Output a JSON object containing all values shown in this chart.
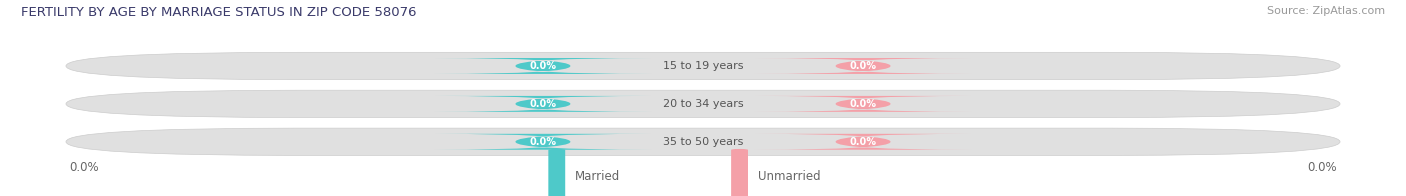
{
  "title": "FERTILITY BY AGE BY MARRIAGE STATUS IN ZIP CODE 58076",
  "source": "Source: ZipAtlas.com",
  "categories": [
    "15 to 19 years",
    "20 to 34 years",
    "35 to 50 years"
  ],
  "married_values": [
    0.0,
    0.0,
    0.0
  ],
  "unmarried_values": [
    0.0,
    0.0,
    0.0
  ],
  "married_color": "#4ec9c9",
  "unmarried_color": "#f4a0a8",
  "bar_track_color": "#e0e0e0",
  "bar_track_edge": "#cccccc",
  "title_color": "#3a3a6a",
  "source_color": "#999999",
  "label_color": "#666666",
  "center_label_color": "#555555",
  "figsize": [
    14.06,
    1.96
  ],
  "dpi": 100,
  "background_color": "#ffffff"
}
